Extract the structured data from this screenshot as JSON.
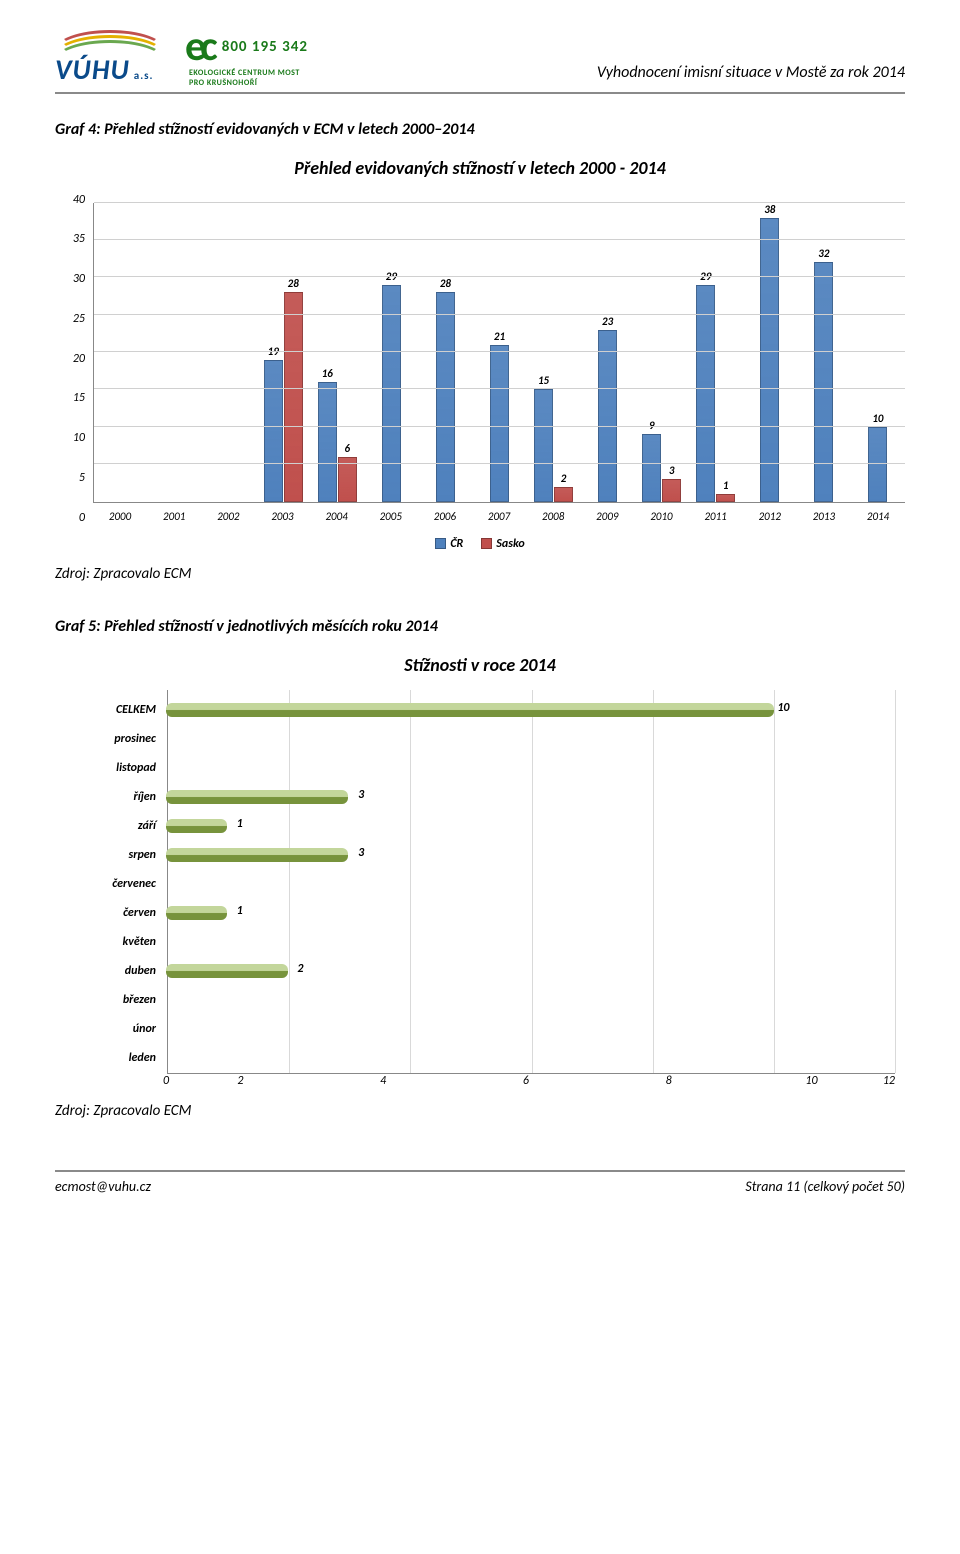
{
  "header": {
    "phone": "800 195 342",
    "ec_line1": "EKOLOGICKÉ CENTRUM MOST",
    "ec_line2": "PRO KRUŠNOHOŘÍ",
    "vuhu": "VÚHU",
    "vuhu_as": "a.s.",
    "doc_title": "Vyhodnocení imisní situace v Mostě za rok 2014"
  },
  "chart1": {
    "caption": "Graf 4: Přehled stížností evidovaných v ECM v letech 2000–2014",
    "title": "Přehled evidovaných stížností v letech 2000 - 2014",
    "ylim": [
      0,
      40
    ],
    "ytick_step": 5,
    "yticks": [
      0,
      5,
      10,
      15,
      20,
      25,
      30,
      35,
      40
    ],
    "years": [
      "2000",
      "2001",
      "2002",
      "2003",
      "2004",
      "2005",
      "2006",
      "2007",
      "2008",
      "2009",
      "2010",
      "2011",
      "2012",
      "2013",
      "2014"
    ],
    "series": [
      {
        "name": "ČR",
        "color": "#4f81bd",
        "values": [
          null,
          null,
          null,
          19,
          16,
          29,
          28,
          21,
          15,
          23,
          9,
          29,
          38,
          32,
          10
        ]
      },
      {
        "name": "Sasko",
        "color": "#c0504d",
        "values": [
          null,
          null,
          null,
          28,
          6,
          null,
          null,
          null,
          2,
          null,
          3,
          1,
          null,
          null,
          null
        ]
      }
    ],
    "legend_labels": [
      "ČR",
      "Sasko"
    ],
    "tick_fontsize": 12,
    "grid_color": "#d0d0d0",
    "source": "Zdroj: Zpracovalo ECM"
  },
  "chart2": {
    "caption": "Graf 5: Přehled stížností v jednotlivých měsících roku 2014",
    "title": "Stížnosti v roce 2014",
    "categories": [
      "CELKEM",
      "prosinec",
      "listopad",
      "říjen",
      "září",
      "srpen",
      "červenec",
      "červen",
      "květen",
      "duben",
      "březen",
      "únor",
      "leden"
    ],
    "values": [
      10,
      0,
      0,
      3,
      1,
      3,
      0,
      1,
      0,
      2,
      0,
      0,
      0
    ],
    "xlim": [
      0,
      12
    ],
    "xtick_step": 2,
    "xticks": [
      0,
      2,
      4,
      6,
      8,
      10,
      12
    ],
    "bar_color_light": "#c3d69b",
    "bar_color_dark": "#77933c",
    "source": "Zdroj: Zpracovalo ECM"
  },
  "footer": {
    "email": "ecmost@vuhu.cz",
    "page": "Strana 11 (celkový počet 50)"
  }
}
